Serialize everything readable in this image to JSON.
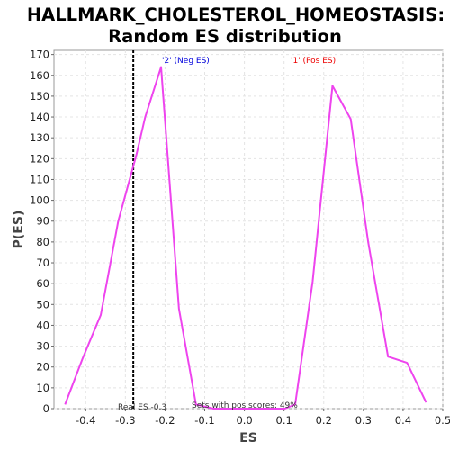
{
  "chart_data": {
    "type": "line",
    "title_line1": "HALLMARK_CHOLESTEROL_HOMEOSTASIS:",
    "title_line2": "Random ES distribution",
    "xlabel": "ES",
    "ylabel": "P(ES)",
    "xlim": [
      -0.48,
      0.5
    ],
    "ylim": [
      0,
      172
    ],
    "x_ticks": [
      -0.4,
      -0.3,
      -0.2,
      -0.1,
      0.0,
      0.1,
      0.2,
      0.3,
      0.4,
      0.5
    ],
    "x_tick_labels": [
      "-0.4",
      "-0.3",
      "-0.2",
      "-0.1",
      "0.0",
      "0.1",
      "0.2",
      "0.3",
      "0.4",
      "0.5"
    ],
    "y_ticks": [
      0,
      10,
      20,
      30,
      40,
      50,
      60,
      70,
      80,
      90,
      100,
      110,
      120,
      130,
      140,
      150,
      160,
      170
    ],
    "grid": true,
    "line_color": "#ee44ee",
    "series": [
      {
        "x": [
          -0.452,
          -0.408,
          -0.362,
          -0.318,
          -0.272,
          -0.25,
          -0.21,
          -0.165,
          -0.122,
          -0.078,
          -0.032,
          0.012,
          0.058,
          0.102,
          0.128,
          0.172,
          0.222,
          0.268,
          0.312,
          0.362,
          0.41,
          0.458
        ],
        "values": [
          2,
          24,
          45,
          90,
          122,
          140,
          164,
          48,
          2,
          0,
          0,
          0,
          0,
          0,
          2,
          61,
          155,
          139,
          80,
          25,
          22,
          3
        ]
      }
    ],
    "real_es": -0.28,
    "real_es_label": "Real ES -0.3",
    "sets_label": "Sets with pos scores: 49%",
    "neg_label": "'2' (Neg ES)",
    "pos_label": "'1' (Pos ES)",
    "neg_color": "#0000dd",
    "pos_color": "#ee0000"
  }
}
